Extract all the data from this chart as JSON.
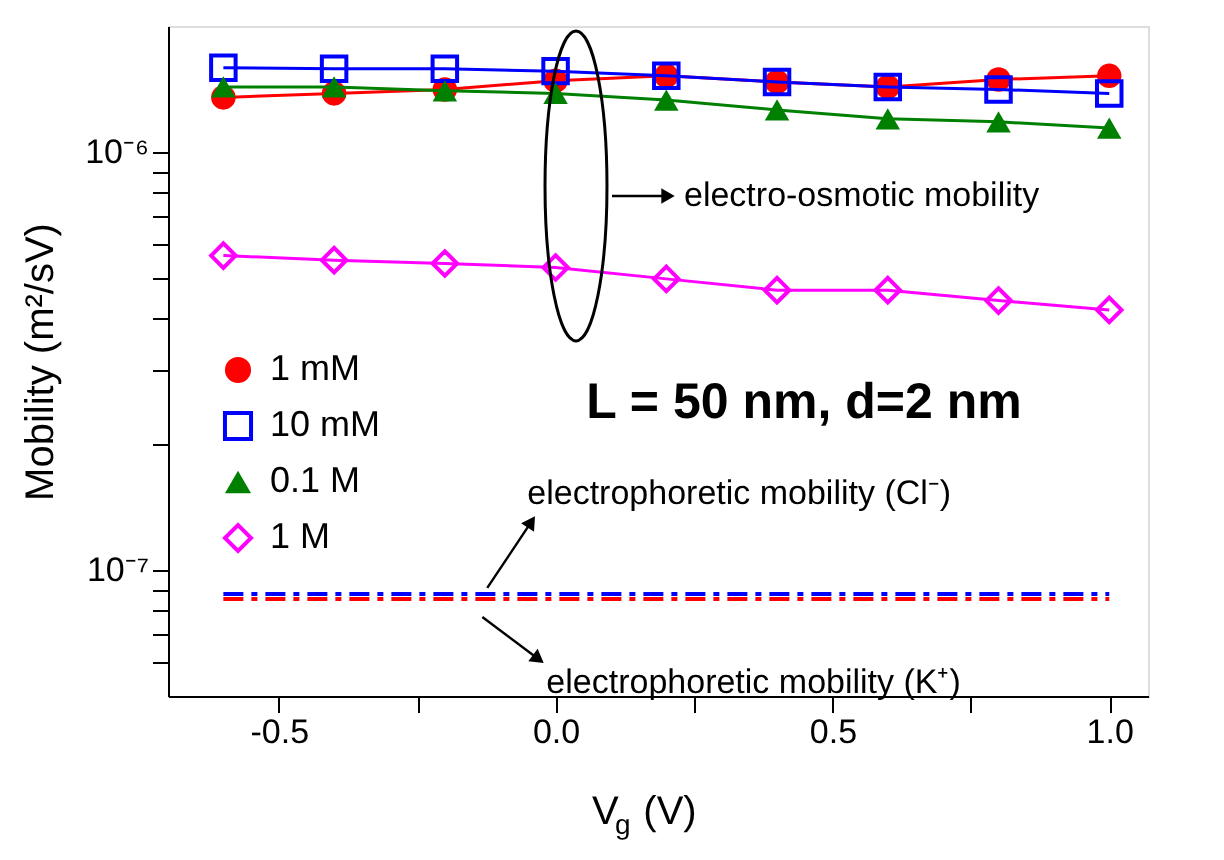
{
  "chart_data": {
    "type": "line",
    "xlabel": "V$_{g}$ (V)",
    "ylabel": "Mobility (m²/sV)",
    "x": [
      -0.6,
      -0.4,
      -0.2,
      0.0,
      0.2,
      0.4,
      0.6,
      0.8,
      1.0
    ],
    "series": [
      {
        "name": "1 mM",
        "color": "#ff0000",
        "marker": "circle",
        "values": [
          1.35e-06,
          1.38e-06,
          1.41e-06,
          1.48e-06,
          1.52e-06,
          1.47e-06,
          1.43e-06,
          1.49e-06,
          1.52e-06
        ]
      },
      {
        "name": "10 mM",
        "color": "#0000ff",
        "marker": "square",
        "values": [
          1.59e-06,
          1.58e-06,
          1.58e-06,
          1.56e-06,
          1.52e-06,
          1.47e-06,
          1.43e-06,
          1.41e-06,
          1.38e-06
        ]
      },
      {
        "name": "0.1 M",
        "color": "#008000",
        "marker": "triangle",
        "values": [
          1.43e-06,
          1.43e-06,
          1.4e-06,
          1.38e-06,
          1.33e-06,
          1.26e-06,
          1.2e-06,
          1.18e-06,
          1.14e-06
        ]
      },
      {
        "name": "1 M",
        "color": "#ff00ff",
        "marker": "diamond",
        "values": [
          5.65e-07,
          5.51e-07,
          5.41e-07,
          5.29e-07,
          4.97e-07,
          4.67e-07,
          4.67e-07,
          4.41e-07,
          4.19e-07
        ]
      },
      {
        "color": "#0000ff",
        "marker": "none",
        "line_style": "dashed",
        "values": [
          8.77e-08,
          8.77e-08,
          8.77e-08,
          8.77e-08,
          8.77e-08,
          8.77e-08,
          8.77e-08,
          8.77e-08,
          8.77e-08
        ]
      },
      {
        "color": "#ff0000",
        "marker": "none",
        "line_style": "dashed",
        "values": [
          8.53e-08,
          8.53e-08,
          8.53e-08,
          8.53e-08,
          8.53e-08,
          8.53e-08,
          8.53e-08,
          8.53e-08,
          8.53e-08
        ]
      }
    ],
    "annotations": [
      "electro-osmotic mobility",
      "L = 50 nm, d=2 nm",
      {
        "text": "electrophoretic mobility (Cl⁻)",
        "x": -0.08,
        "y": 8.77e-08
      },
      {
        "text": "electrophoretic mobility (K⁺)",
        "x": -0.06,
        "y": 8.53e-08
      }
    ],
    "xlim": [
      -0.7,
      1.07
    ],
    "xticks": [
      -0.5,
      {
        "value": -0.25,
        "label": null
      },
      {
        "value": 0.0,
        "label": "0.0"
      },
      {
        "value": 0.25,
        "label": null
      },
      0.5,
      {
        "value": 0.75,
        "label": null
      },
      {
        "value": 1.0,
        "label": "1.0"
      }
    ],
    "ylim": [
      5e-08,
      2e-06
    ],
    "yticks": [
      {
        "value": 6e-08,
        "label": null
      },
      {
        "value": 7e-08,
        "label": null
      },
      {
        "value": 8e-08,
        "label": null
      },
      {
        "value": 9e-08,
        "label": null
      },
      {
        "value": 1e-07,
        "label": "10⁻⁷"
      },
      {
        "value": 2e-07,
        "label": null
      },
      {
        "value": 3e-07,
        "label": null
      },
      {
        "value": 4e-07,
        "label": null
      },
      {
        "value": 5e-07,
        "label": null
      },
      {
        "value": 6e-07,
        "label": null
      },
      {
        "value": 7e-07,
        "label": null
      },
      {
        "value": 8e-07,
        "label": null
      },
      {
        "value": 9e-07,
        "label": null
      },
      {
        "value": 1e-06,
        "label": "10⁻⁶"
      }
    ],
    "log": "y",
    "grid": false,
    "legend": "left"
  }
}
